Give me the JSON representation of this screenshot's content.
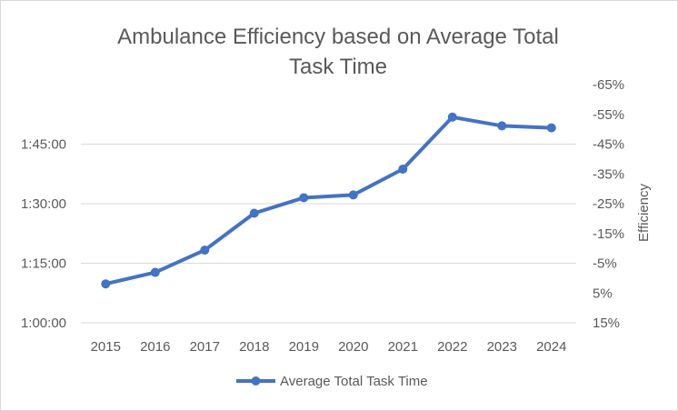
{
  "chart_data": {
    "type": "line",
    "title_lines": [
      "Ambulance Efficiency based on Average Total",
      "Task Time"
    ],
    "categories": [
      "2015",
      "2016",
      "2017",
      "2018",
      "2019",
      "2020",
      "2021",
      "2022",
      "2023",
      "2024"
    ],
    "series": [
      {
        "name": "Average Total Task Time",
        "color": "#4472c4",
        "values_minutes": [
          69.8,
          72.7,
          78.3,
          87.6,
          91.5,
          92.2,
          98.7,
          111.8,
          109.6,
          109.1
        ]
      }
    ],
    "y_primary": {
      "range_minutes": [
        60,
        120
      ],
      "tick_values_minutes": [
        60,
        75,
        90,
        105
      ],
      "tick_labels": [
        "1:00:00",
        "1:15:00",
        "1:30:00",
        "1:45:00"
      ]
    },
    "y_secondary": {
      "label": "Efficiency",
      "range_percent": [
        15,
        -65
      ],
      "tick_values_percent": [
        15,
        5,
        -5,
        -15,
        -25,
        -35,
        -45,
        -55,
        -65
      ],
      "tick_labels": [
        "15%",
        "5%",
        "-5%",
        "-15%",
        "-25%",
        "-35%",
        "-45%",
        "-55%",
        "-65%"
      ]
    },
    "grid": true,
    "legend_position": "bottom"
  }
}
